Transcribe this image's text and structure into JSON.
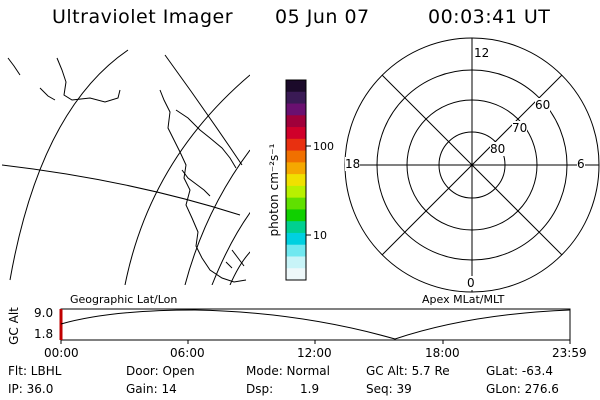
{
  "header": {
    "title": "Ultraviolet Imager",
    "date": "05 Jun 07",
    "time": "00:03:41 UT"
  },
  "colorbar": {
    "unit_label": "photon cm⁻²s⁻¹",
    "tick_100": "100",
    "tick_10": "10",
    "colors": [
      "#1b0a2a",
      "#3a1a55",
      "#6a1070",
      "#a0003a",
      "#d0002a",
      "#e83010",
      "#f07000",
      "#f5a800",
      "#f0e000",
      "#b8f000",
      "#60e000",
      "#10d000",
      "#00d090",
      "#00d0e0",
      "#70e8f0",
      "#c8f4f8",
      "#eef8fa"
    ]
  },
  "polar": {
    "label_12": "12",
    "label_18": "18",
    "label_6": "6",
    "label_0": "0",
    "label_60": "60",
    "label_70": "70",
    "label_80": "80"
  },
  "panel_labels": {
    "geographic": "Geographic Lat/Lon",
    "apex": "Apex MLat/MLT"
  },
  "altitude_plot": {
    "ylabel": "GC Alt",
    "y_top": "9.0",
    "y_bottom": "1.8",
    "x_ticks": [
      "00:00",
      "06:00",
      "12:00",
      "18:00",
      "23:59"
    ]
  },
  "info": {
    "filter": "Flt: LBHL",
    "ip": "IP: 36.0",
    "door": "Door: Open",
    "gain": "Gain: 14",
    "mode": "Mode: Normal",
    "dsp_label": "Dsp:",
    "dsp_value": "1.9",
    "gc_alt": "GC Alt: 5.7 Re",
    "seq": "Seq: 39",
    "glat": "GLat: -63.4",
    "glon": "GLon: 276.6"
  }
}
